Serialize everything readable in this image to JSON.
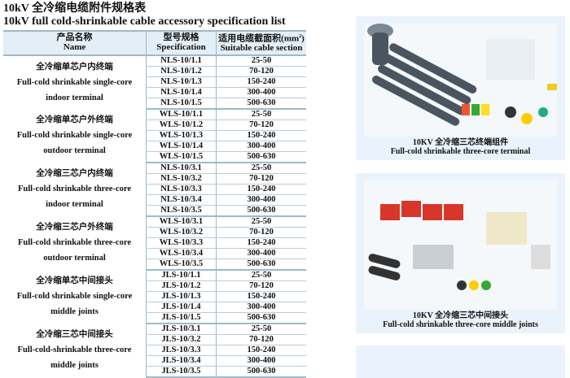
{
  "title_cn": "10kV 全冷缩电缆附件规格表",
  "title_en": "10kV full cold-shrinkable cable accessory specification list",
  "table": {
    "headers": {
      "name_cn": "产品名称",
      "name_en": "Name",
      "spec_cn": "型号规格",
      "spec_en": "Specification",
      "section_cn": "适用电缆截面积(mm",
      "section_sup": "2",
      "section_close": ")",
      "section_en": "Suitable cable section"
    },
    "groups": [
      {
        "name_cn": "全冷缩单芯户内终端",
        "name_en1": "Full-cold shrinkable single-core",
        "name_en2": "indoor terminal",
        "rows": [
          [
            "NLS-10/1.1",
            "25-50"
          ],
          [
            "NLS-10/1.2",
            "70-120"
          ],
          [
            "NLS-10/1.3",
            "150-240"
          ],
          [
            "NLS-10/1.4",
            "300-400"
          ],
          [
            "NLS-10/1.5",
            "500-630"
          ]
        ]
      },
      {
        "name_cn": "全冷缩单芯户外终端",
        "name_en1": "Full-cold shrinkable single-core",
        "name_en2": "outdoor terminal",
        "rows": [
          [
            "WLS-10/1.1",
            "25-50"
          ],
          [
            "WLS-10/1.2",
            "70-120"
          ],
          [
            "WLS-10/1.3",
            "150-240"
          ],
          [
            "WLS-10/1.4",
            "300-400"
          ],
          [
            "WLS-10/1.5",
            "500-630"
          ]
        ]
      },
      {
        "name_cn": "全冷缩三芯户内终端",
        "name_en1": "Full-cold shrinkable three-core",
        "name_en2": "indoor terminal",
        "rows": [
          [
            "NLS-10/3.1",
            "25-50"
          ],
          [
            "NLS-10/3.2",
            "70-120"
          ],
          [
            "NLS-10/3.3",
            "150-240"
          ],
          [
            "NLS-10/3.4",
            "300-400"
          ],
          [
            "NLS-10/3.5",
            "500-630"
          ]
        ]
      },
      {
        "name_cn": "全冷缩三芯户外终端",
        "name_en1": "Full-cold shrinkable three-core",
        "name_en2": "outdoor terminal",
        "rows": [
          [
            "WLS-10/3.1",
            "25-50"
          ],
          [
            "WLS-10/3.2",
            "70-120"
          ],
          [
            "WLS-10/3.3",
            "150-240"
          ],
          [
            "WLS-10/3.4",
            "300-400"
          ],
          [
            "WLS-10/3.5",
            "500-630"
          ]
        ]
      },
      {
        "name_cn": "全冷缩单芯中间接头",
        "name_en1": "Full-cold shrinkable single-core",
        "name_en2": "middle joints",
        "rows": [
          [
            "JLS-10/1.1",
            "25-50"
          ],
          [
            "JLS-10/1.2",
            "70-120"
          ],
          [
            "JLS-10/1.3",
            "150-240"
          ],
          [
            "JLS-10/1.4",
            "300-400"
          ],
          [
            "JLS-10/1.5",
            "500-630"
          ]
        ]
      },
      {
        "name_cn": "全冷缩三芯中间接头",
        "name_en1": "Full-cold-shrinkable three-core",
        "name_en2": "middle joints",
        "rows": [
          [
            "JLS-10/3.1",
            "25-50"
          ],
          [
            "JLS-10/3.2",
            "70-120"
          ],
          [
            "JLS-10/3.3",
            "150-240"
          ],
          [
            "JLS-10/3.4",
            "300-400"
          ],
          [
            "JLS-10/3.5",
            "500-630"
          ]
        ]
      }
    ]
  },
  "panels": [
    {
      "cap_cn": "10KV 全冷缩三芯终端组件",
      "cap_en": "Full-cold shrinkable three-core  terminal"
    },
    {
      "cap_cn": "10KV 全冷缩三芯中间接头",
      "cap_en": "Full-cold shrinkable three-core middle joints"
    }
  ],
  "colors": {
    "header_bg": "#e3eef6",
    "rule": "#9fb8c8",
    "panel_bg": "#eaf3fb",
    "tube": "#4a5560"
  }
}
